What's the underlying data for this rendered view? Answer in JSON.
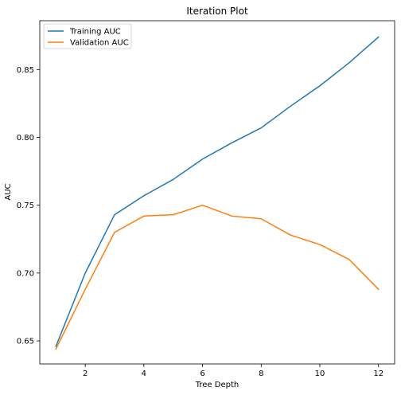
{
  "chart_data": {
    "type": "line",
    "title": "Iteration Plot",
    "xlabel": "Tree Depth",
    "ylabel": "AUC",
    "x": [
      1,
      2,
      3,
      4,
      5,
      6,
      7,
      8,
      9,
      10,
      11,
      12
    ],
    "series": [
      {
        "name": "Training AUC",
        "color": "#1f77b4",
        "values": [
          0.646,
          0.7,
          0.743,
          0.757,
          0.769,
          0.784,
          0.796,
          0.807,
          0.823,
          0.838,
          0.855,
          0.874
        ]
      },
      {
        "name": "Validation AUC",
        "color": "#ff7f0e",
        "values": [
          0.644,
          0.688,
          0.73,
          0.742,
          0.743,
          0.75,
          0.742,
          0.74,
          0.728,
          0.721,
          0.71,
          0.688
        ]
      }
    ],
    "xticks": [
      2,
      4,
      6,
      8,
      10,
      12
    ],
    "yticks": [
      0.65,
      0.7,
      0.75,
      0.8,
      0.85
    ],
    "ytick_labels": [
      "0.65",
      "0.70",
      "0.75",
      "0.80",
      "0.85"
    ],
    "xlim": [
      0.45,
      12.55
    ],
    "ylim": [
      0.633,
      0.886
    ],
    "grid": false,
    "legend_position": "top-left"
  }
}
